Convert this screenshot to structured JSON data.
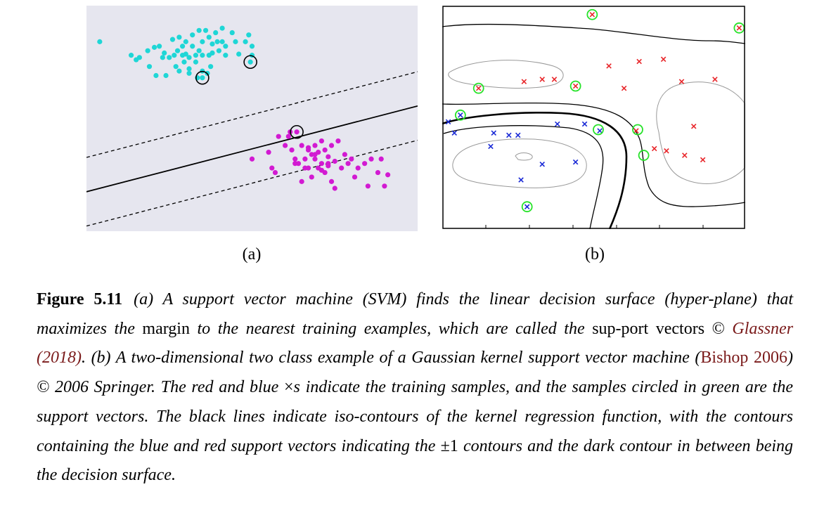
{
  "panel_labels": {
    "a": "(a)",
    "b": "(b)"
  },
  "caption": {
    "figure_number": "Figure 5.11",
    "s1": "(a) A support vector machine (SVM) finds the linear decision surface (hyper-plane) that maximizes the",
    "s2": "margin",
    "s3": "to the nearest training examples, which are called the",
    "s4": "sup-port vectors",
    "s5": "©",
    "cite1": "Glassner (2018)",
    "s6": ". (b) A two-dimensional two class example of a Gaussian kernel support vector machine (",
    "cite2": "Bishop 2006",
    "s7": ") © 2006 Springer. The red and blue",
    "s8": "×",
    "s9": "s indicate the training samples, and the samples circled in green are the support vectors. The black lines indicate iso-contours of the kernel regression function, with the contours containing the blue and red support vectors indicating the",
    "s10": "±1",
    "s11": "contours and the dark contour in between being the decision surface."
  },
  "colors": {
    "panel_a_background": "#e6e6ef",
    "cyan_class": "#1fd6d6",
    "magenta_class": "#d21ad2",
    "red_class": "#e8262a",
    "blue_class": "#1a2ad6",
    "support_vector_circle": "#27e22a"
  },
  "chart_data": [
    {
      "type": "scatter",
      "panel": "(a)",
      "xlim": [
        0,
        100
      ],
      "ylim": [
        0,
        100
      ],
      "grid": false,
      "decision_line": {
        "slope": 0.38,
        "intercept": 17.5
      },
      "margin_offset": 15.2,
      "series": [
        {
          "color": "cyan",
          "x": [
            4,
            15,
            13.5,
            16,
            18.5,
            20.5,
            19,
            22,
            23,
            23.5,
            25,
            26,
            26.5,
            27,
            27.5,
            28,
            29,
            29,
            29.5,
            30,
            30,
            31,
            31,
            32,
            32,
            33,
            33,
            34,
            34,
            35,
            35,
            36,
            37,
            37,
            37.5,
            38,
            38,
            39,
            39.5,
            40,
            41,
            41,
            42,
            42,
            44,
            45,
            46,
            48,
            49,
            50,
            50,
            21,
            24,
            28,
            31,
            33.5,
            35,
            36.5
          ],
          "y": [
            84,
            76,
            78,
            77,
            80,
            81.5,
            73,
            82,
            77,
            79,
            77,
            85,
            78,
            73,
            80,
            86,
            78,
            82,
            75,
            84,
            78.5,
            77,
            72,
            87,
            82,
            78,
            75,
            89,
            80,
            84,
            78,
            89,
            86,
            78,
            73,
            83,
            79,
            88,
            84,
            80,
            90,
            84,
            82,
            78,
            88,
            84,
            78.5,
            84,
            87,
            82,
            78,
            69,
            69,
            71,
            70,
            68,
            71,
            70
          ]
        },
        {
          "color": "magenta",
          "x": [
            50,
            55,
            56,
            57,
            61,
            61.5,
            62,
            63,
            64,
            65,
            66,
            66,
            67,
            67,
            68,
            68,
            69,
            69,
            70,
            70,
            71,
            71,
            72,
            72,
            73,
            73,
            74,
            74,
            75,
            76,
            77,
            78,
            79,
            80,
            81,
            82,
            84,
            85,
            86,
            88,
            89,
            90,
            91,
            58,
            60,
            63,
            65,
            67,
            69,
            71,
            73,
            75
          ],
          "y": [
            32,
            35,
            28,
            26,
            42,
            44,
            36,
            32,
            30,
            38,
            32,
            28,
            36,
            28,
            34,
            24,
            38,
            32,
            28,
            35,
            40,
            30,
            36,
            26,
            33,
            29,
            38,
            22,
            31,
            40,
            28,
            34,
            30,
            32,
            24,
            28,
            30,
            20,
            32,
            26,
            32,
            20,
            25,
            42,
            38,
            30,
            22,
            37,
            34,
            27,
            30,
            19
          ]
        }
      ],
      "support_vectors": {
        "color": "cyan",
        "x": [
          35,
          49.5
        ],
        "y": [
          68,
          75
        ]
      },
      "support_vectors_2": {
        "color": "magenta",
        "x": [
          63.5
        ],
        "y": [
          44
        ]
      }
    },
    {
      "type": "scatter",
      "panel": "(b)",
      "xlim": [
        0,
        100
      ],
      "ylim": [
        0,
        100
      ],
      "grid": false,
      "series": [
        {
          "name": "red ×",
          "marker": "x",
          "x": [
            49.5,
            98,
            12,
            27,
            33,
            37,
            44,
            55,
            60,
            65,
            73,
            79,
            90,
            64,
            70,
            74,
            80,
            86,
            83
          ],
          "y": [
            96,
            90,
            63,
            66,
            67,
            67,
            64,
            73,
            63,
            75,
            76,
            66,
            67,
            44,
            36,
            35,
            33,
            31,
            46
          ]
        },
        {
          "name": "blue ×",
          "marker": "x",
          "x": [
            2,
            6,
            4,
            16,
            17,
            22,
            25,
            38,
            47,
            52,
            26,
            33,
            44,
            28
          ],
          "y": [
            48,
            51,
            43,
            37,
            43,
            42,
            42,
            47,
            47,
            44,
            22,
            29,
            30,
            10
          ]
        }
      ],
      "support_vectors": {
        "color": "green",
        "x": [
          49.5,
          98,
          12,
          44,
          6,
          51.5,
          64.5,
          66.5,
          28
        ],
        "y": [
          96,
          90,
          63,
          64,
          51,
          44.5,
          44.5,
          33,
          10
        ]
      }
    }
  ],
  "icons": [
    "x-marker-icon",
    "circle-marker-icon"
  ]
}
